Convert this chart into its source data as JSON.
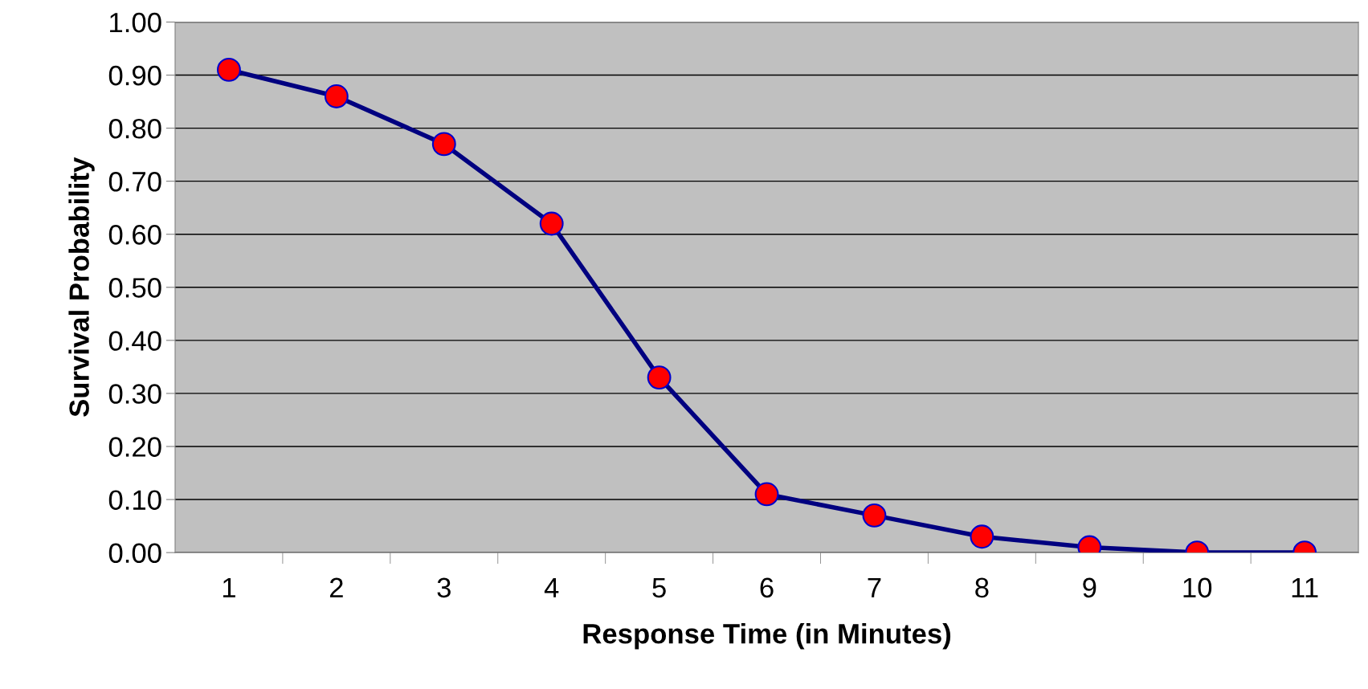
{
  "chart_data": {
    "type": "line",
    "xlabel": "Response Time (in Minutes)",
    "ylabel": "Survival Probability",
    "categories": [
      "1",
      "2",
      "3",
      "4",
      "5",
      "6",
      "7",
      "8",
      "9",
      "10",
      "11"
    ],
    "series": [
      {
        "color": "#000080",
        "values": [
          0.91,
          0.86,
          0.77,
          0.62,
          0.33,
          0.11,
          0.07,
          0.03,
          0.01,
          0.0,
          0.0
        ]
      }
    ],
    "ylim": [
      0,
      1
    ],
    "yticks": [
      {
        "value": 0,
        "label": "0.00"
      },
      {
        "value": 0.1,
        "label": "0.10"
      },
      {
        "value": 0.2,
        "label": "0.20"
      },
      {
        "value": 0.3,
        "label": "0.30"
      },
      {
        "value": 0.4,
        "label": "0.40"
      },
      {
        "value": 0.5,
        "label": "0.50"
      },
      {
        "value": 0.6,
        "label": "0.60"
      },
      {
        "value": 0.7,
        "label": "0.70"
      },
      {
        "value": 0.8,
        "label": "0.80"
      },
      {
        "value": 0.9,
        "label": "0.90"
      },
      {
        "value": 1,
        "label": "1.00"
      }
    ],
    "grid": "y",
    "marker": "circle",
    "line_style": "solid"
  }
}
